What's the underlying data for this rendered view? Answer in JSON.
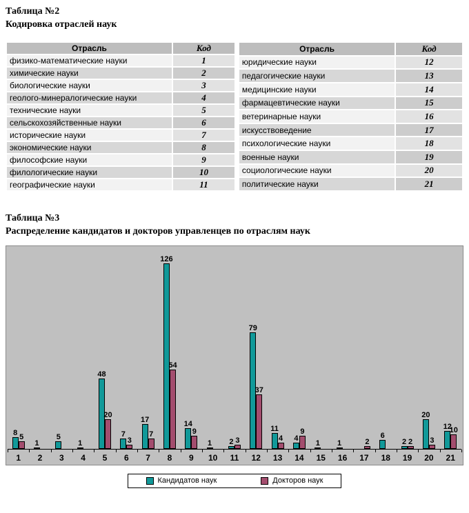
{
  "table2": {
    "title": "Таблица №2",
    "subtitle": "Кодировка отраслей наук",
    "headers": [
      "Отрасль",
      "Код"
    ],
    "left_rows": [
      [
        "физико-математические науки",
        "1"
      ],
      [
        "химические науки",
        "2"
      ],
      [
        "биологические науки",
        "3"
      ],
      [
        "геолого-минералогические науки",
        "4"
      ],
      [
        "технические науки",
        "5"
      ],
      [
        "сельскохозяйственные науки",
        "6"
      ],
      [
        "исторические науки",
        "7"
      ],
      [
        "экономические науки",
        "8"
      ],
      [
        "философские науки",
        "9"
      ],
      [
        "филологические науки",
        "10"
      ],
      [
        "географические науки",
        "11"
      ]
    ],
    "right_rows": [
      [
        "юридические науки",
        "12"
      ],
      [
        "педагогические науки",
        "13"
      ],
      [
        "медицинские науки",
        "14"
      ],
      [
        "фармацевтические науки",
        "15"
      ],
      [
        "ветеринарные науки",
        "16"
      ],
      [
        "искусствоведение",
        "17"
      ],
      [
        "психологические науки",
        "18"
      ],
      [
        "военные науки",
        "19"
      ],
      [
        "социологические науки",
        "20"
      ],
      [
        "политические науки",
        "21"
      ]
    ]
  },
  "table3": {
    "title": "Таблица №3",
    "subtitle": "Распределение кандидатов и докторов управленцев по отраслям наук"
  },
  "chart_data": {
    "type": "bar",
    "title": "Распределение кандидатов и докторов управленцев по отраслям наук",
    "categories": [
      "1",
      "2",
      "3",
      "4",
      "5",
      "6",
      "7",
      "8",
      "9",
      "10",
      "11",
      "12",
      "13",
      "14",
      "15",
      "16",
      "17",
      "18",
      "19",
      "20",
      "21"
    ],
    "series": [
      {
        "name": "Кандидатов наук",
        "color": "#119999",
        "values": [
          8,
          1,
          5,
          1,
          48,
          7,
          17,
          126,
          14,
          1,
          2,
          79,
          11,
          4,
          1,
          1,
          null,
          6,
          2,
          20,
          12
        ]
      },
      {
        "name": "Докторов наук",
        "color": "#a34d6e",
        "values": [
          5,
          null,
          null,
          null,
          20,
          3,
          7,
          54,
          9,
          null,
          3,
          37,
          4,
          9,
          null,
          null,
          2,
          null,
          2,
          3,
          10
        ]
      }
    ],
    "xlabel": "",
    "ylabel": "",
    "ylim": [
      0,
      135
    ],
    "grid": false,
    "data_labels": true,
    "plot_bg": "#c0c0c0",
    "legend_position": "bottom"
  }
}
